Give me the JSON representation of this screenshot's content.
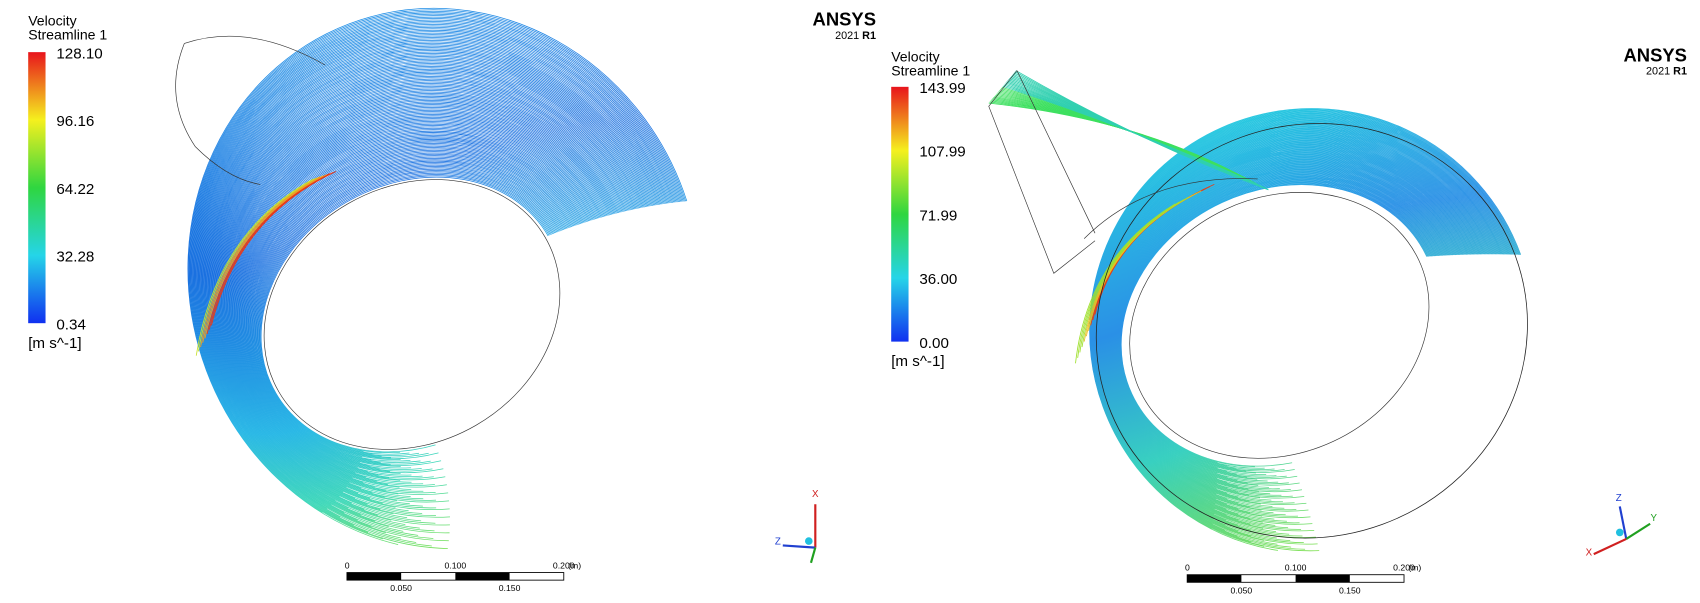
{
  "panels": [
    {
      "legend": {
        "title": "Velocity",
        "subtitle": "Streamline 1",
        "ticks": [
          "128.10",
          "96.16",
          "64.22",
          "32.28",
          "0.34"
        ],
        "unit": "[m s^-1]"
      },
      "logo": {
        "brand": "ANSYS",
        "version": "2021",
        "release": "R1"
      },
      "scale_bar": {
        "top_labels": [
          "0",
          "0.100",
          "0.200"
        ],
        "unit": "(m)",
        "bottom_labels": [
          "0.050",
          "0.150"
        ]
      },
      "triad": [
        "X",
        "Z"
      ]
    },
    {
      "legend": {
        "title": "Velocity",
        "subtitle": "Streamline 1",
        "ticks": [
          "143.99",
          "107.99",
          "71.99",
          "36.00",
          "0.00"
        ],
        "unit": "[m s^-1]"
      },
      "logo": {
        "brand": "ANSYS",
        "version": "2021",
        "release": "R1"
      },
      "scale_bar": {
        "top_labels": [
          "0",
          "0.100",
          "0.200"
        ],
        "unit": "(m)",
        "bottom_labels": [
          "0.050",
          "0.150"
        ]
      },
      "triad": [
        "Z",
        "Y",
        "X"
      ]
    }
  ]
}
